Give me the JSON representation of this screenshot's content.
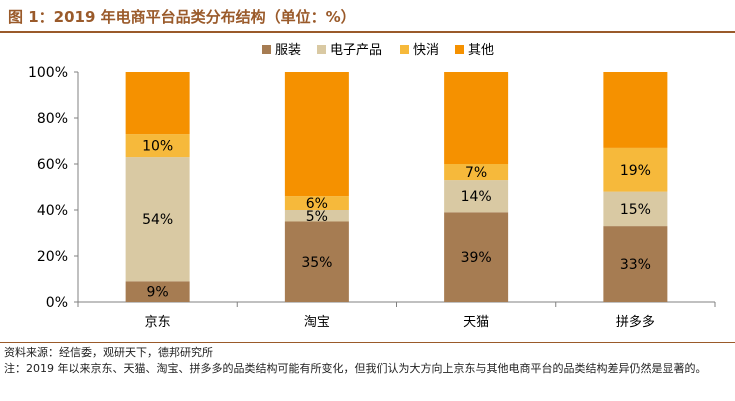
{
  "header": {
    "title": "图 1：2019 年电商平台品类分布结构（单位：%）"
  },
  "footer": {
    "source": "资料来源：经信委，观研天下，德邦研究所",
    "note": "注：2019 年以来京东、天猫、淘宝、拼多多的品类结构可能有所变化，但我们认为大方向上京东与其他电商平台的品类结构差异仍然是显著的。"
  },
  "chart_data": {
    "type": "bar",
    "stacked": true,
    "title": "",
    "xlabel": "",
    "ylabel": "",
    "ylim": [
      0,
      100
    ],
    "y_ticks": [
      "0%",
      "20%",
      "40%",
      "60%",
      "80%",
      "100%"
    ],
    "y_tick_values": [
      0,
      20,
      40,
      60,
      80,
      100
    ],
    "grid": false,
    "legend_position": "top-center",
    "categories": [
      "京东",
      "淘宝",
      "天猫",
      "拼多多"
    ],
    "series": [
      {
        "name": "服装",
        "color": "#a67c52",
        "values": [
          9,
          35,
          39,
          33
        ],
        "labels": [
          "9%",
          "35%",
          "39%",
          "33%"
        ],
        "label_color": "#000000"
      },
      {
        "name": "电子产品",
        "color": "#d9c9a3",
        "values": [
          54,
          5,
          14,
          15
        ],
        "labels": [
          "54%",
          "5%",
          "14%",
          "15%"
        ],
        "label_color": "#000000"
      },
      {
        "name": "快消",
        "color": "#f6b93b",
        "values": [
          10,
          6,
          7,
          19
        ],
        "labels": [
          "10%",
          "6%",
          "7%",
          "19%"
        ],
        "label_color": "#000000"
      },
      {
        "name": "其他",
        "color": "#f59100",
        "values": [
          27,
          54,
          40,
          33
        ],
        "labels": [
          "",
          "",
          "",
          ""
        ],
        "label_color": "#000000"
      }
    ]
  }
}
